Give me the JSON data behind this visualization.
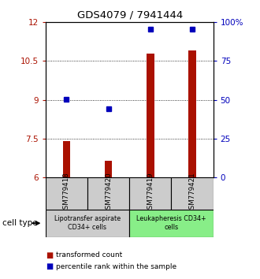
{
  "title": "GDS4079 / 7941444",
  "samples": [
    "GSM779418",
    "GSM779420",
    "GSM779419",
    "GSM779421"
  ],
  "bar_values": [
    7.4,
    6.65,
    10.8,
    10.9
  ],
  "dot_values": [
    9.02,
    8.65,
    11.72,
    11.72
  ],
  "ylim": [
    6,
    12
  ],
  "yticks_left": [
    6,
    7.5,
    9,
    10.5,
    12
  ],
  "yticks_right": [
    0,
    25,
    50,
    75,
    100
  ],
  "bar_color": "#aa1100",
  "dot_color": "#0000bb",
  "group_labels": [
    "Lipotransfer aspirate\nCD34+ cells",
    "Leukapheresis CD34+\ncells"
  ],
  "group_colors": [
    "#cccccc",
    "#88ee88"
  ],
  "group_ranges": [
    [
      0,
      2
    ],
    [
      2,
      4
    ]
  ],
  "legend_bar_label": "transformed count",
  "legend_dot_label": "percentile rank within the sample",
  "cell_type_label": "cell type",
  "sample_box_color": "#cccccc",
  "bar_width": 0.18
}
